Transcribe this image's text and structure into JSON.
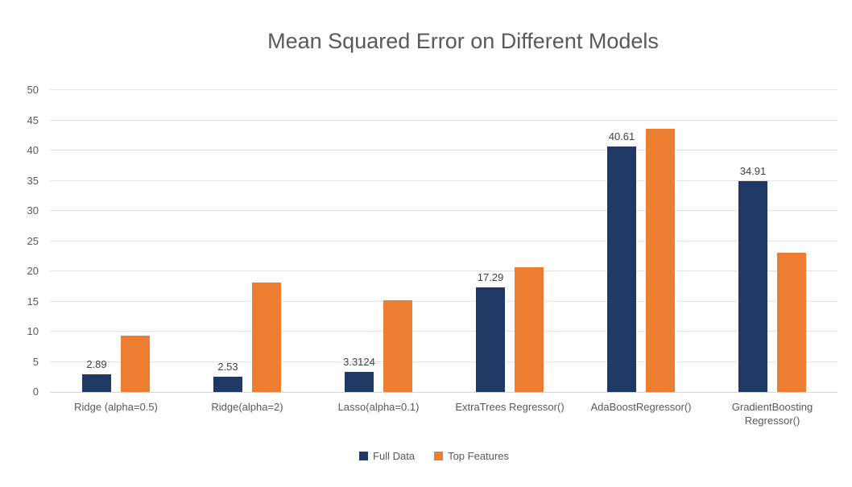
{
  "chart_data": {
    "type": "bar",
    "title": "Mean Squared Error on Different Models",
    "categories": [
      "Ridge (alpha=0.5)",
      "Ridge(alpha=2)",
      "Lasso(alpha=0.1)",
      "ExtraTrees Regressor()",
      "AdaBoostRegressor()",
      "GradientBoosting Regressor()"
    ],
    "series": [
      {
        "name": "Full Data",
        "color": "#1F3864",
        "values": [
          2.89,
          2.53,
          3.3124,
          17.29,
          40.61,
          34.91
        ],
        "data_labels": [
          "2.89",
          "2.53",
          "3.3124",
          "17.29",
          "40.61",
          "34.91"
        ]
      },
      {
        "name": "Top Features",
        "color": "#ED7D31",
        "values": [
          9.3,
          18.1,
          15.2,
          20.6,
          43.6,
          23.0
        ],
        "data_labels": null
      }
    ],
    "xlabel": "",
    "ylabel": "",
    "ylim": [
      0,
      50
    ],
    "yticks": [
      0,
      5,
      10,
      15,
      20,
      25,
      30,
      35,
      40,
      45,
      50
    ],
    "grid": true,
    "legend_position": "bottom",
    "style_colors": {
      "title_text": "#595959",
      "tick_text": "#595959",
      "data_label_text": "#404040",
      "gridline": "#e2e2e2",
      "axis_line": "#d6d6d6",
      "background": "#ffffff"
    }
  }
}
